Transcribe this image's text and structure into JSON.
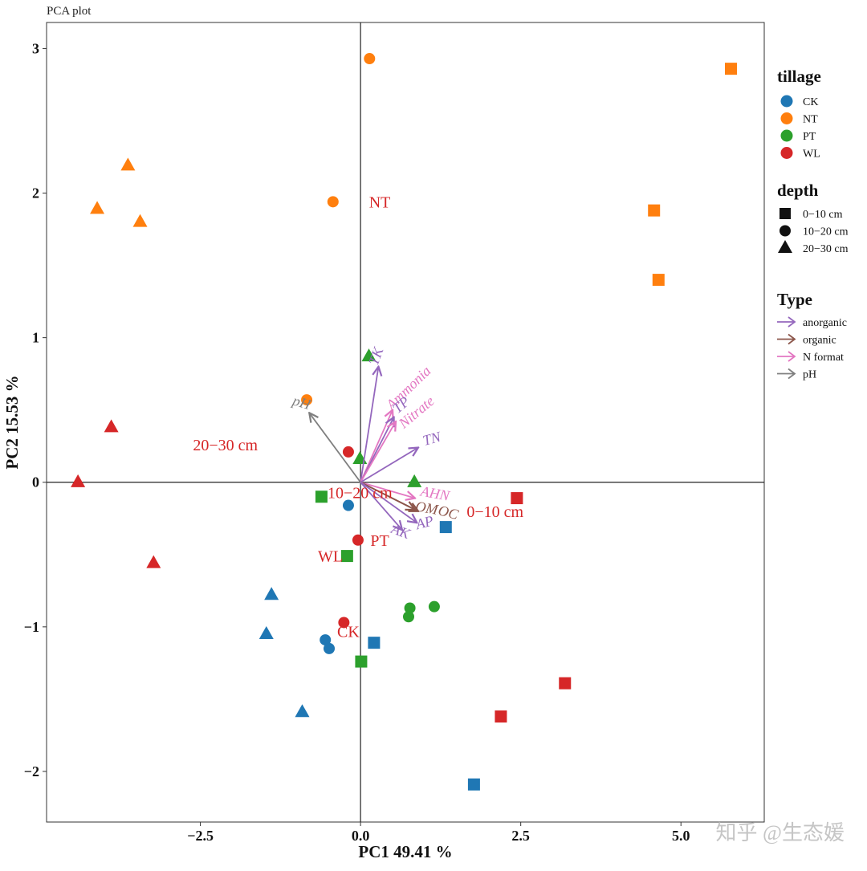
{
  "chart_data": {
    "type": "scatter",
    "title": "PCA plot",
    "xlabel": "PC1 49.41  %",
    "ylabel": "PC2 15.53  %",
    "xlim": [
      -4.9,
      6.3
    ],
    "ylim": [
      -2.35,
      3.18
    ],
    "x_ticks": [
      -2.5,
      0.0,
      2.5,
      5.0
    ],
    "x_tick_labels": [
      "−2.5",
      "0.0",
      "2.5",
      "5.0"
    ],
    "y_ticks": [
      -2,
      -1,
      0,
      1,
      2,
      3
    ],
    "y_tick_labels": [
      "−2",
      "−1",
      "0",
      "1",
      "2",
      "3"
    ],
    "grid": false,
    "reference_lines": {
      "x": 0,
      "y": 0
    },
    "colors": {
      "CK": "#1f77b4",
      "NT": "#ff7f0e",
      "PT": "#2ca02c",
      "WL": "#d62728",
      "anorganic": "#9467bd",
      "organic": "#8c564b",
      "N format": "#e377c2",
      "pH": "#7f7f7f",
      "annotation": "#d62728"
    },
    "points": [
      {
        "x": 5.78,
        "y": 2.86,
        "tillage": "NT",
        "depth": "0−10 cm"
      },
      {
        "x": 4.58,
        "y": 1.88,
        "tillage": "NT",
        "depth": "0−10 cm"
      },
      {
        "x": 4.65,
        "y": 1.4,
        "tillage": "NT",
        "depth": "0−10 cm"
      },
      {
        "x": 0.14,
        "y": 2.93,
        "tillage": "NT",
        "depth": "10−20 cm"
      },
      {
        "x": -0.43,
        "y": 1.94,
        "tillage": "NT",
        "depth": "10−20 cm"
      },
      {
        "x": -0.84,
        "y": 0.57,
        "tillage": "NT",
        "depth": "10−20 cm"
      },
      {
        "x": -3.63,
        "y": 2.19,
        "tillage": "NT",
        "depth": "20−30 cm"
      },
      {
        "x": -4.11,
        "y": 1.89,
        "tillage": "NT",
        "depth": "20−30 cm"
      },
      {
        "x": -3.44,
        "y": 1.8,
        "tillage": "NT",
        "depth": "20−30 cm"
      },
      {
        "x": 2.44,
        "y": -0.11,
        "tillage": "WL",
        "depth": "0−10 cm"
      },
      {
        "x": 3.19,
        "y": -1.39,
        "tillage": "WL",
        "depth": "0−10 cm"
      },
      {
        "x": 2.19,
        "y": -1.62,
        "tillage": "WL",
        "depth": "0−10 cm"
      },
      {
        "x": -0.19,
        "y": 0.21,
        "tillage": "WL",
        "depth": "10−20 cm"
      },
      {
        "x": -0.04,
        "y": -0.4,
        "tillage": "WL",
        "depth": "10−20 cm"
      },
      {
        "x": -0.26,
        "y": -0.97,
        "tillage": "WL",
        "depth": "10−20 cm"
      },
      {
        "x": -3.89,
        "y": 0.38,
        "tillage": "WL",
        "depth": "20−30 cm"
      },
      {
        "x": -4.41,
        "y": 0.0,
        "tillage": "WL",
        "depth": "20−30 cm"
      },
      {
        "x": -3.23,
        "y": -0.56,
        "tillage": "WL",
        "depth": "20−30 cm"
      },
      {
        "x": -0.61,
        "y": -0.1,
        "tillage": "PT",
        "depth": "0−10 cm"
      },
      {
        "x": -0.21,
        "y": -0.51,
        "tillage": "PT",
        "depth": "0−10 cm"
      },
      {
        "x": 0.01,
        "y": -1.24,
        "tillage": "PT",
        "depth": "0−10 cm"
      },
      {
        "x": 0.77,
        "y": -0.87,
        "tillage": "PT",
        "depth": "10−20 cm"
      },
      {
        "x": 0.75,
        "y": -0.93,
        "tillage": "PT",
        "depth": "10−20 cm"
      },
      {
        "x": 1.15,
        "y": -0.86,
        "tillage": "PT",
        "depth": "10−20 cm"
      },
      {
        "x": 0.13,
        "y": 0.87,
        "tillage": "PT",
        "depth": "20−30 cm"
      },
      {
        "x": -0.01,
        "y": 0.16,
        "tillage": "PT",
        "depth": "20−30 cm"
      },
      {
        "x": 0.84,
        "y": 0.0,
        "tillage": "PT",
        "depth": "20−30 cm"
      },
      {
        "x": 1.33,
        "y": -0.31,
        "tillage": "CK",
        "depth": "0−10 cm"
      },
      {
        "x": 0.21,
        "y": -1.11,
        "tillage": "CK",
        "depth": "0−10 cm"
      },
      {
        "x": 1.77,
        "y": -2.09,
        "tillage": "CK",
        "depth": "0−10 cm"
      },
      {
        "x": -0.19,
        "y": -0.16,
        "tillage": "CK",
        "depth": "10−20 cm"
      },
      {
        "x": -0.55,
        "y": -1.09,
        "tillage": "CK",
        "depth": "10−20 cm"
      },
      {
        "x": -0.49,
        "y": -1.15,
        "tillage": "CK",
        "depth": "10−20 cm"
      },
      {
        "x": -1.39,
        "y": -0.78,
        "tillage": "CK",
        "depth": "20−30 cm"
      },
      {
        "x": -1.47,
        "y": -1.05,
        "tillage": "CK",
        "depth": "20−30 cm"
      },
      {
        "x": -0.91,
        "y": -1.59,
        "tillage": "CK",
        "depth": "20−30 cm"
      }
    ],
    "loadings": [
      {
        "name": "TK",
        "type": "anorganic",
        "x": 0.28,
        "y": 0.8
      },
      {
        "name": "Ammonia",
        "type": "N format",
        "x": 0.5,
        "y": 0.5
      },
      {
        "name": "TP",
        "type": "anorganic",
        "x": 0.52,
        "y": 0.45
      },
      {
        "name": "Nitrate",
        "type": "N format",
        "x": 0.55,
        "y": 0.42
      },
      {
        "name": "TN",
        "type": "anorganic",
        "x": 0.9,
        "y": 0.24
      },
      {
        "name": "pH",
        "type": "pH",
        "x": -0.8,
        "y": 0.48
      },
      {
        "name": "AHN",
        "type": "N format",
        "x": 0.85,
        "y": -0.11
      },
      {
        "name": "OM",
        "type": "organic",
        "x": 0.85,
        "y": -0.19
      },
      {
        "name": "OC",
        "type": "organic",
        "x": 0.9,
        "y": -0.2
      },
      {
        "name": "AP",
        "type": "anorganic",
        "x": 0.88,
        "y": -0.28
      },
      {
        "name": "AK",
        "type": "anorganic",
        "x": 0.65,
        "y": -0.33
      }
    ],
    "loading_labels": [
      {
        "name": "TK",
        "x": 0.31,
        "y": 0.86,
        "rotate": -70
      },
      {
        "name": "Ammonia",
        "x": 0.8,
        "y": 0.63,
        "rotate": -44
      },
      {
        "name": "TP",
        "x": 0.68,
        "y": 0.51,
        "rotate": -40
      },
      {
        "name": "Nitrate",
        "x": 0.92,
        "y": 0.46,
        "rotate": -40
      },
      {
        "name": "TN",
        "x": 1.13,
        "y": 0.27,
        "rotate": -15
      },
      {
        "name": "pH",
        "x": -0.94,
        "y": 0.52,
        "rotate": 17
      },
      {
        "name": "AHN",
        "x": 1.15,
        "y": -0.11,
        "rotate": 10
      },
      {
        "name": "OM",
        "x": 1.02,
        "y": -0.21,
        "rotate": 10
      },
      {
        "name": "OC",
        "x": 1.35,
        "y": -0.24,
        "rotate": 15
      },
      {
        "name": "AP",
        "x": 1.02,
        "y": -0.31,
        "rotate": -15
      },
      {
        "name": "AK",
        "x": 0.6,
        "y": -0.37,
        "rotate": 20
      }
    ],
    "annotations": [
      {
        "text": "NT",
        "x": 0.3,
        "y": 1.94
      },
      {
        "text": "20−30 cm",
        "x": -2.11,
        "y": 0.26
      },
      {
        "text": "10−20 cm",
        "x": -0.01,
        "y": -0.07
      },
      {
        "text": "0−10 cm",
        "x": 2.1,
        "y": -0.2
      },
      {
        "text": "PT",
        "x": 0.3,
        "y": -0.4
      },
      {
        "text": "WL",
        "x": -0.47,
        "y": -0.51
      },
      {
        "text": "CK",
        "x": -0.19,
        "y": -1.03
      }
    ],
    "legend": {
      "placement": "right",
      "tillage_title": "tillage",
      "tillage": [
        "CK",
        "NT",
        "PT",
        "WL"
      ],
      "depth_title": "depth",
      "depth": [
        "0−10 cm",
        "10−20 cm",
        "20−30 cm"
      ],
      "type_title": "Type",
      "type": [
        "anorganic",
        "organic",
        "N format",
        "pH"
      ]
    },
    "watermark": "知乎 @生态媛"
  }
}
